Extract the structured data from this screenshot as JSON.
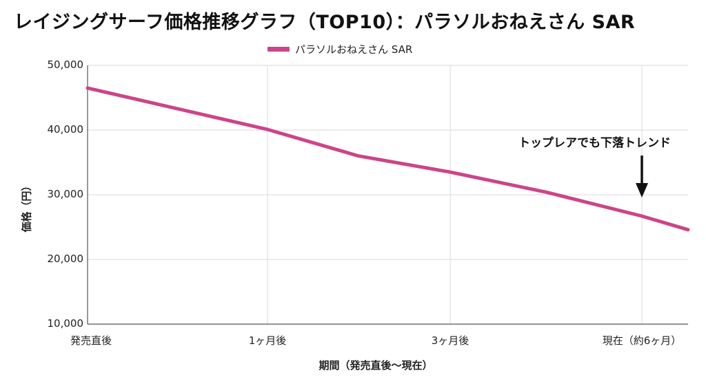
{
  "title": "レイジングサーフ価格推移グラフ（TOP10）：パラソルおねえさん SAR",
  "legend": {
    "label": "パラソルおねえさん SAR",
    "color": "#cc4489"
  },
  "axes": {
    "ylabel": "価格（円）",
    "xlabel": "期間（発売直後〜現在）",
    "yticks": [
      "50,000",
      "40,000",
      "30,000",
      "20,000",
      "10,000"
    ],
    "xticks": [
      "発売直後",
      "1ヶ月後",
      "3ヶ月後",
      "現在（約6ヶ月）"
    ]
  },
  "annotation": {
    "text": "トップレアでも下落トレンド",
    "color": "#111111"
  },
  "chart_data": {
    "type": "line",
    "title": "レイジングサーフ価格推移グラフ（TOP10）：パラソルおねえさん SAR",
    "xlabel": "期間（発売直後〜現在）",
    "ylabel": "価格（円）",
    "ylim": [
      10000,
      50000
    ],
    "yticks": [
      10000,
      20000,
      30000,
      40000,
      50000
    ],
    "x_tick_labels": [
      "発売直後",
      "1ヶ月後",
      "3ヶ月後",
      "現在（約6ヶ月）"
    ],
    "x_months": [
      0,
      1,
      3,
      6
    ],
    "grid": true,
    "legend_position": "top",
    "series": [
      {
        "name": "パラソルおねえさん SAR",
        "color": "#cc4489",
        "points": [
          {
            "x": 0,
            "label": "発売直後",
            "y": 46500
          },
          {
            "x": 1,
            "label": "1ヶ月後",
            "y": 40100
          },
          {
            "x": 2,
            "label": "",
            "y": 36000
          },
          {
            "x": 3,
            "label": "3ヶ月後",
            "y": 33500
          },
          {
            "x": 4.5,
            "label": "",
            "y": 30400
          },
          {
            "x": 6,
            "label": "現在（約6ヶ月）",
            "y": 26700
          },
          {
            "x": 6.7,
            "label": "",
            "y": 24600
          }
        ]
      }
    ],
    "annotations": [
      {
        "text": "トップレアでも下落トレンド",
        "arrow_to": {
          "x": 6,
          "y": 28500
        }
      }
    ]
  }
}
